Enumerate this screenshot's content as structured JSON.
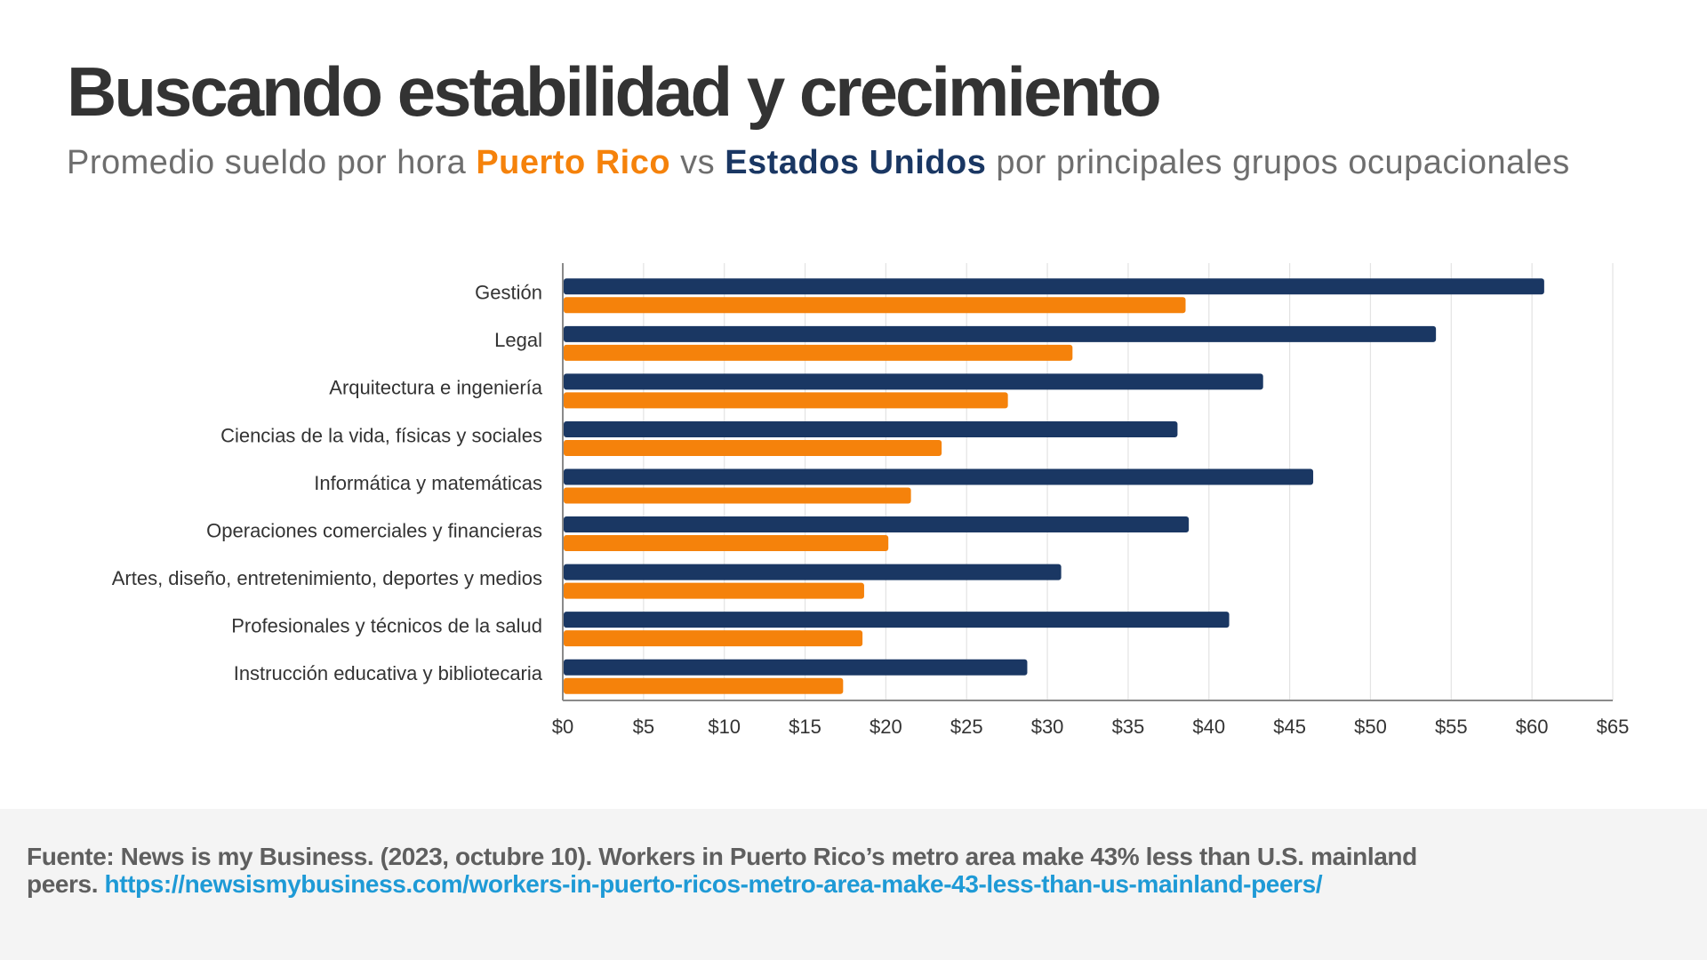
{
  "title": "Buscando estabilidad y crecimiento",
  "subtitle": {
    "prefix": "Promedio sueldo por hora ",
    "pr": "Puerto Rico",
    "mid": " vs ",
    "us": "Estados Unidos",
    "suffix": " por principales grupos ocupacionales"
  },
  "colors": {
    "estados_unidos": "#1a3763",
    "puerto_rico": "#f5820b",
    "title": "#333333",
    "subtitle": "#6e6e6e",
    "link": "#1e9ad6",
    "footer_bg": "#f4f4f4"
  },
  "chart_data": {
    "type": "bar",
    "orientation": "horizontal",
    "title": "",
    "xlabel": "",
    "ylabel": "",
    "categories": [
      "Gestión",
      "Legal",
      "Arquitectura e ingeniería",
      "Ciencias de la vida, físicas y sociales",
      "Informática y matemáticas",
      "Operaciones comerciales y financieras",
      "Artes, diseño, entretenimiento, deportes y medios",
      "Profesionales y técnicos de la salud",
      "Instrucción educativa y bibliotecaria"
    ],
    "series": [
      {
        "name": "Estados Unidos",
        "values": [
          60.7,
          54.0,
          43.3,
          38.0,
          46.4,
          38.7,
          30.8,
          41.2,
          28.7
        ]
      },
      {
        "name": "Puerto Rico",
        "values": [
          38.5,
          31.5,
          27.5,
          23.4,
          21.5,
          20.1,
          18.6,
          18.5,
          17.3
        ]
      }
    ],
    "xlim": [
      0,
      65
    ],
    "x_ticks": [
      0,
      5,
      10,
      15,
      20,
      25,
      30,
      35,
      40,
      45,
      50,
      55,
      60,
      65
    ],
    "x_tick_labels": [
      "$0",
      "$5",
      "$10",
      "$15",
      "$20",
      "$25",
      "$30",
      "$35",
      "$40",
      "$45",
      "$50",
      "$55",
      "$60",
      "$65"
    ],
    "grid": "vertical",
    "legend": "none"
  },
  "footer": {
    "source": "Fuente: News is my Business. (2023, octubre 10). Workers in Puerto Rico’s metro area make 43% less than U.S. mainland peers. ",
    "url": "https://newsismybusiness.com/workers-in-puerto-ricos-metro-area-make-43-less-than-us-mainland-peers/"
  }
}
